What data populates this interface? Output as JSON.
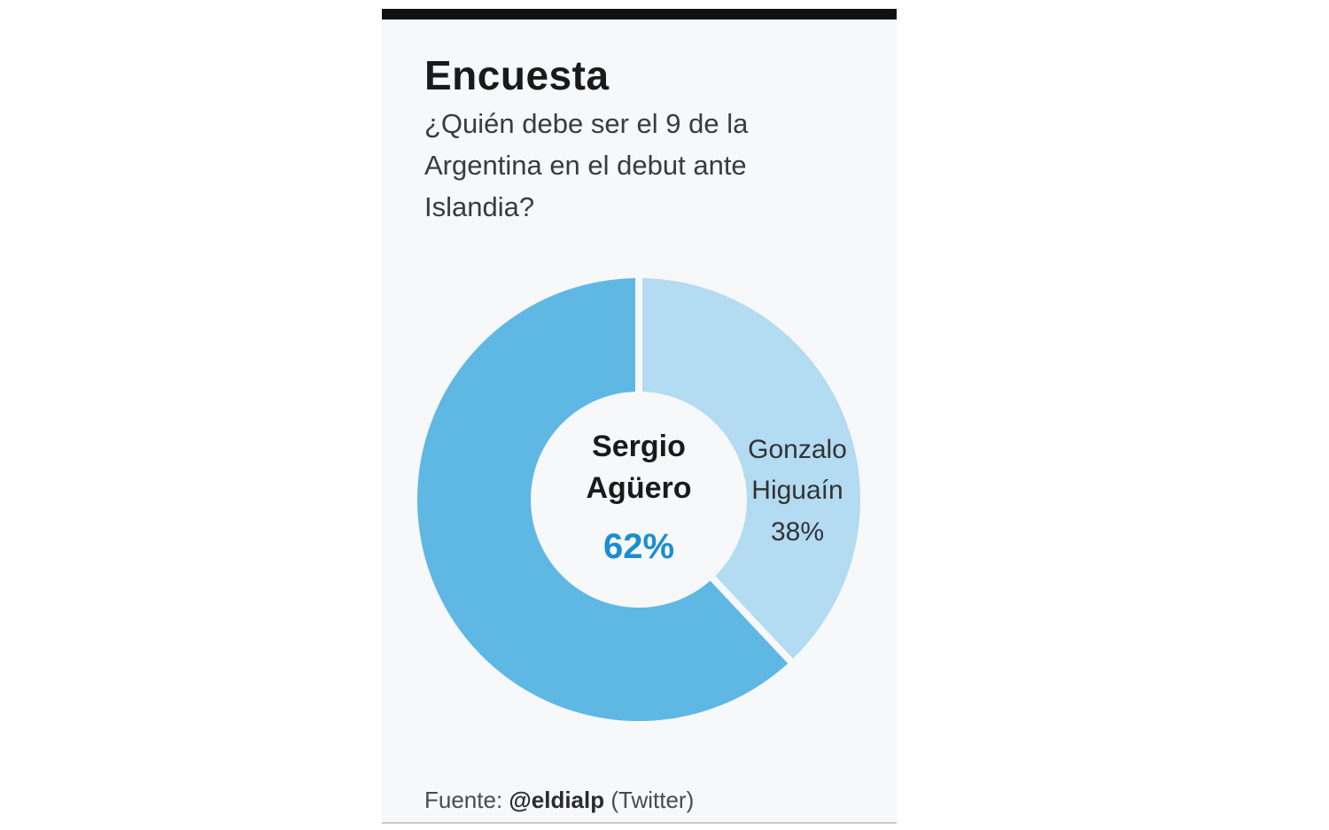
{
  "title": "Encuesta",
  "subtitle": "¿Quién debe ser el 9 de la Argentina en el debut ante Islandia?",
  "source": {
    "prefix": "Fuente:",
    "handle": "@eldialp",
    "suffix": "(Twitter)"
  },
  "colors": {
    "primary_slice": "#5fb7e3",
    "secondary_slice": "#b3dbf1",
    "primary_value_text": "#1a8ed0",
    "heading_text": "#1a1a1a",
    "rule": "#111111"
  },
  "chart_data": {
    "type": "pie",
    "style": "donut",
    "slices": [
      {
        "name_lines": [
          "Sergio",
          "Agüero"
        ],
        "value": 62,
        "value_label": "62%",
        "color": "#5fb7e3",
        "label_position": "center"
      },
      {
        "name_lines": [
          "Gonzalo",
          "Higuaín"
        ],
        "value": 38,
        "value_label": "38%",
        "color": "#b3dbf1",
        "label_position": "on-slice"
      }
    ]
  }
}
